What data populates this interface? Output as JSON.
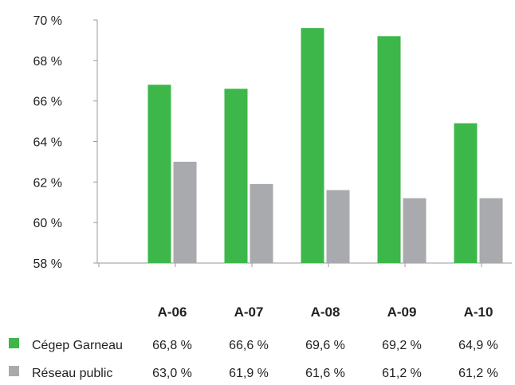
{
  "chart_data": {
    "type": "bar",
    "title": "",
    "xlabel": "",
    "ylabel": "",
    "ylim": [
      58,
      70
    ],
    "yticks": [
      58,
      60,
      62,
      64,
      66,
      68,
      70
    ],
    "ytick_labels": [
      "58 %",
      "60 %",
      "62 %",
      "64 %",
      "66 %",
      "68 %",
      "70 %"
    ],
    "grid": false,
    "legend_position": "left-table",
    "categories": [
      "A-06",
      "A-07",
      "A-08",
      "A-09",
      "A-10"
    ],
    "series": [
      {
        "name": "Cégep Garneau",
        "color": "#3db74a",
        "values": [
          66.8,
          66.6,
          69.6,
          69.2,
          64.9
        ],
        "value_labels": [
          "66,8 %",
          "66,6 %",
          "69,6 %",
          "69,2 %",
          "64,9 %"
        ]
      },
      {
        "name": "Réseau public",
        "color": "#a8aaad",
        "values": [
          63.0,
          61.9,
          61.6,
          61.2,
          61.2
        ],
        "value_labels": [
          "63,0 %",
          "61,9 %",
          "61,6 %",
          "61,2 %",
          "61,2 %"
        ]
      }
    ]
  }
}
